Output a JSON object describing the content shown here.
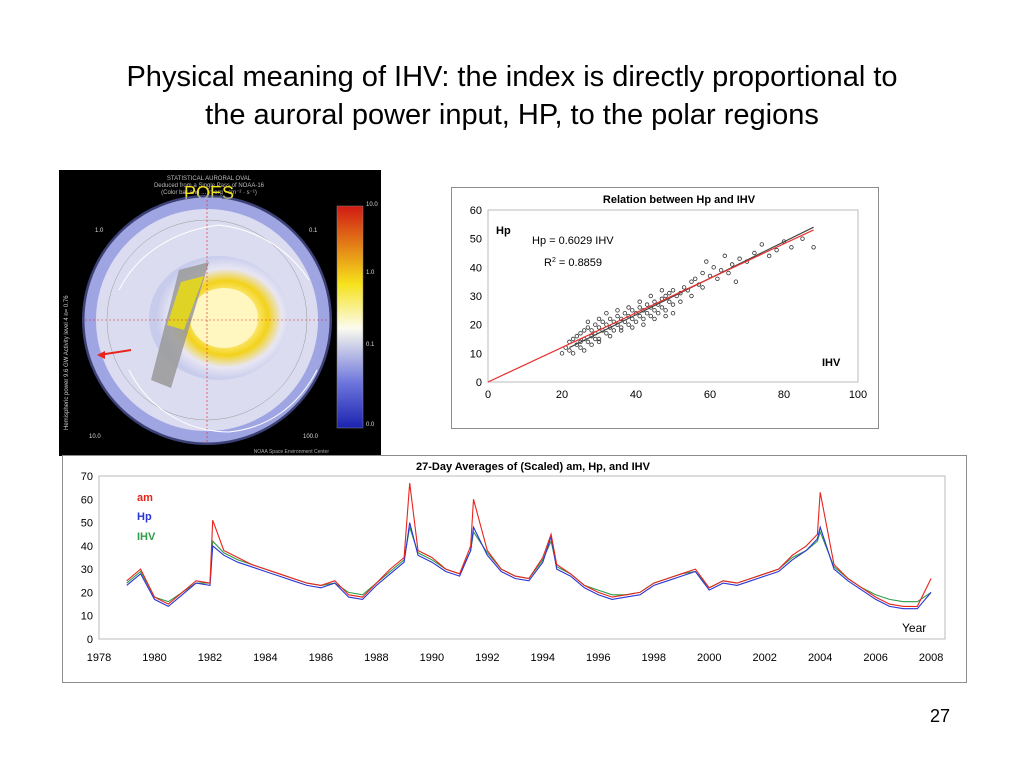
{
  "slide": {
    "title_line1": "Physical meaning of IHV: the index is directly proportional to",
    "title_line2": "the auroral power input, HP, to the polar regions",
    "page_number": "27"
  },
  "poes": {
    "label": "POES",
    "header_lines": [
      "STATISTICAL AURORAL OVAL",
      "Deduced from a Single Pass of NOAA-16",
      "(Color bar and ... in erg · cm⁻² · s⁻¹)"
    ],
    "left_side_text": "Hemispheric power 9.6 GW  Activity level 4  n= 0.76",
    "colorbar_labels": [
      "10.0",
      "1.0",
      "0.1",
      "0.0"
    ],
    "corner_labels": [
      "1.0",
      "0.1",
      "10.0",
      "100.0"
    ],
    "footer": "NOAA Space Environment Center",
    "colors": {
      "yellow": "#f7e81e",
      "red": "#e8241c",
      "blue": "#2b35c9"
    }
  },
  "chart_data": [
    {
      "type": "scatter",
      "title": "Relation between Hp and IHV",
      "ylabel": "Hp",
      "xlabel": "IHV",
      "xlim": [
        0,
        100
      ],
      "ylim": [
        0,
        60
      ],
      "xticks": [
        "0",
        "20",
        "40",
        "60",
        "80",
        "100"
      ],
      "yticks": [
        "0",
        "10",
        "20",
        "30",
        "40",
        "50",
        "60"
      ],
      "annotation_equation": "Hp = 0.6029 IHV",
      "annotation_r2_prefix": "R",
      "annotation_r2_sup": "2",
      "annotation_r2_value": " = 0.8859",
      "fit_slope": 0.6029,
      "colors": {
        "points": "#333333",
        "fit": "#e8302c",
        "trend": "#444444"
      },
      "points": [
        [
          20,
          10
        ],
        [
          21,
          12
        ],
        [
          22,
          14
        ],
        [
          22,
          11
        ],
        [
          23,
          15
        ],
        [
          24,
          13
        ],
        [
          24,
          16
        ],
        [
          25,
          12
        ],
        [
          25,
          17
        ],
        [
          26,
          15
        ],
        [
          26,
          18
        ],
        [
          27,
          14
        ],
        [
          27,
          19
        ],
        [
          28,
          16
        ],
        [
          28,
          18
        ],
        [
          29,
          17
        ],
        [
          29,
          20
        ],
        [
          30,
          15
        ],
        [
          30,
          19
        ],
        [
          31,
          18
        ],
        [
          31,
          21
        ],
        [
          32,
          17
        ],
        [
          32,
          20
        ],
        [
          33,
          19
        ],
        [
          33,
          22
        ],
        [
          34,
          18
        ],
        [
          34,
          21
        ],
        [
          35,
          20
        ],
        [
          35,
          23
        ],
        [
          36,
          19
        ],
        [
          36,
          22
        ],
        [
          37,
          21
        ],
        [
          37,
          24
        ],
        [
          38,
          20
        ],
        [
          38,
          23
        ],
        [
          39,
          22
        ],
        [
          39,
          25
        ],
        [
          40,
          21
        ],
        [
          40,
          24
        ],
        [
          41,
          23
        ],
        [
          41,
          26
        ],
        [
          42,
          22
        ],
        [
          42,
          25
        ],
        [
          43,
          24
        ],
        [
          43,
          27
        ],
        [
          44,
          23
        ],
        [
          44,
          26
        ],
        [
          45,
          25
        ],
        [
          45,
          28
        ],
        [
          46,
          24
        ],
        [
          46,
          27
        ],
        [
          47,
          26
        ],
        [
          47,
          29
        ],
        [
          48,
          25
        ],
        [
          48,
          30
        ],
        [
          49,
          28
        ],
        [
          49,
          31
        ],
        [
          50,
          27
        ],
        [
          50,
          32
        ],
        [
          51,
          30
        ],
        [
          52,
          31
        ],
        [
          52,
          28
        ],
        [
          53,
          33
        ],
        [
          54,
          32
        ],
        [
          55,
          35
        ],
        [
          55,
          30
        ],
        [
          56,
          36
        ],
        [
          57,
          34
        ],
        [
          58,
          38
        ],
        [
          58,
          33
        ],
        [
          59,
          42
        ],
        [
          60,
          37
        ],
        [
          61,
          40
        ],
        [
          62,
          36
        ],
        [
          63,
          39
        ],
        [
          64,
          44
        ],
        [
          65,
          38
        ],
        [
          66,
          41
        ],
        [
          67,
          35
        ],
        [
          68,
          43
        ],
        [
          70,
          42
        ],
        [
          72,
          45
        ],
        [
          74,
          48
        ],
        [
          76,
          44
        ],
        [
          78,
          46
        ],
        [
          80,
          49
        ],
        [
          82,
          47
        ],
        [
          85,
          50
        ],
        [
          88,
          47
        ],
        [
          23,
          10
        ],
        [
          26,
          11
        ],
        [
          28,
          13
        ],
        [
          30,
          14
        ],
        [
          33,
          16
        ],
        [
          36,
          18
        ],
        [
          39,
          19
        ],
        [
          42,
          20
        ],
        [
          45,
          22
        ],
        [
          48,
          23
        ],
        [
          50,
          24
        ],
        [
          35,
          25
        ],
        [
          38,
          26
        ],
        [
          41,
          28
        ],
        [
          44,
          30
        ],
        [
          47,
          32
        ],
        [
          30,
          22
        ],
        [
          27,
          21
        ],
        [
          32,
          24
        ],
        [
          25,
          14
        ],
        [
          29,
          15
        ]
      ]
    },
    {
      "type": "line",
      "title": "27-Day Averages of (Scaled) am, Hp, and IHV",
      "xlabel": "Year",
      "xlim": [
        1978,
        2008.5
      ],
      "ylim": [
        0,
        70
      ],
      "xticks": [
        "1978",
        "1980",
        "1982",
        "1984",
        "1986",
        "1988",
        "1990",
        "1992",
        "1994",
        "1996",
        "1998",
        "2000",
        "2002",
        "2004",
        "2006",
        "2008"
      ],
      "yticks": [
        "0",
        "10",
        "20",
        "30",
        "40",
        "50",
        "60",
        "70"
      ],
      "x": [
        1979.0,
        1979.5,
        1980.0,
        1980.5,
        1981.0,
        1981.5,
        1982.0,
        1982.1,
        1982.5,
        1983.0,
        1983.5,
        1984.0,
        1984.5,
        1985.0,
        1985.5,
        1986.0,
        1986.5,
        1987.0,
        1987.5,
        1988.0,
        1988.5,
        1989.0,
        1989.2,
        1989.5,
        1990.0,
        1990.5,
        1991.0,
        1991.4,
        1991.5,
        1992.0,
        1992.5,
        1993.0,
        1993.5,
        1994.0,
        1994.3,
        1994.5,
        1995.0,
        1995.5,
        1996.0,
        1996.5,
        1997.0,
        1997.5,
        1998.0,
        1998.5,
        1999.0,
        1999.5,
        2000.0,
        2000.5,
        2001.0,
        2001.5,
        2002.0,
        2002.5,
        2003.0,
        2003.5,
        2003.9,
        2004.0,
        2004.5,
        2005.0,
        2005.5,
        2006.0,
        2006.5,
        2007.0,
        2007.5,
        2008.0
      ],
      "series": [
        {
          "name": "am",
          "color": "#e8241c",
          "values": [
            25,
            30,
            18,
            15,
            20,
            25,
            24,
            51,
            38,
            35,
            32,
            30,
            28,
            26,
            24,
            23,
            25,
            19,
            18,
            24,
            30,
            35,
            67,
            38,
            35,
            30,
            28,
            40,
            60,
            38,
            30,
            27,
            26,
            35,
            45,
            32,
            28,
            23,
            20,
            18,
            19,
            20,
            24,
            26,
            28,
            30,
            22,
            25,
            24,
            26,
            28,
            30,
            36,
            40,
            45,
            63,
            32,
            26,
            22,
            18,
            15,
            14,
            14,
            26
          ]
        },
        {
          "name": "Hp",
          "color": "#2b35d6",
          "values": [
            23,
            28,
            17,
            14,
            19,
            24,
            23,
            40,
            36,
            33,
            31,
            29,
            27,
            25,
            23,
            22,
            24,
            18,
            17,
            23,
            28,
            33,
            50,
            36,
            33,
            29,
            27,
            38,
            48,
            36,
            29,
            26,
            25,
            33,
            44,
            30,
            27,
            22,
            19,
            17,
            18,
            19,
            23,
            25,
            27,
            29,
            21,
            24,
            23,
            25,
            27,
            29,
            34,
            38,
            43,
            48,
            30,
            25,
            21,
            17,
            14,
            13,
            13,
            20
          ]
        },
        {
          "name": "IHV",
          "color": "#2f9c4a",
          "values": [
            24,
            29,
            18,
            16,
            20,
            24,
            24,
            42,
            37,
            34,
            32,
            30,
            28,
            26,
            24,
            23,
            24,
            20,
            19,
            24,
            29,
            34,
            48,
            37,
            34,
            30,
            28,
            38,
            46,
            37,
            30,
            27,
            26,
            34,
            42,
            31,
            28,
            23,
            21,
            19,
            19,
            20,
            24,
            26,
            28,
            29,
            22,
            25,
            24,
            26,
            28,
            30,
            35,
            38,
            42,
            46,
            31,
            26,
            22,
            19,
            17,
            16,
            16,
            20
          ]
        }
      ]
    }
  ]
}
